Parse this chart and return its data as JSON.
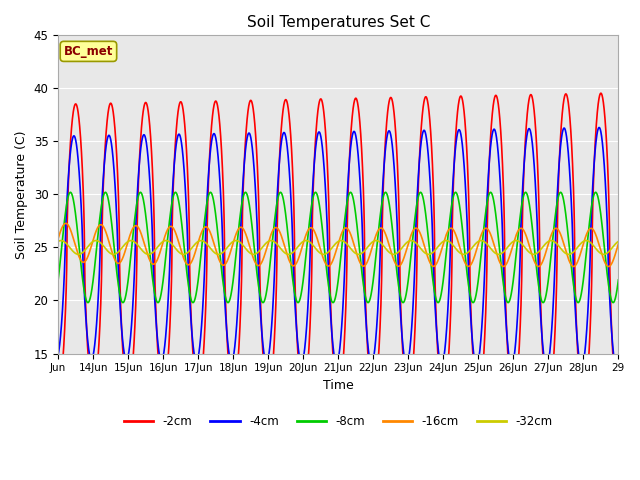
{
  "title": "Soil Temperatures Set C",
  "xlabel": "Time",
  "ylabel": "Soil Temperature (C)",
  "ylim": [
    15,
    45
  ],
  "fig_bg_color": "#ffffff",
  "plot_bg_color": "#e8e8e8",
  "annotation_text": "BC_met",
  "annotation_bg": "#ffff99",
  "annotation_border": "#999900",
  "series_order": [
    "-2cm",
    "-4cm",
    "-8cm",
    "-16cm",
    "-32cm"
  ],
  "series_colors": {
    "-2cm": "#ff0000",
    "-4cm": "#0000ff",
    "-8cm": "#00cc00",
    "-16cm": "#ff8800",
    "-32cm": "#cccc00"
  },
  "x_start": 13.0,
  "x_end": 29.0,
  "x_ticks": [
    13,
    14,
    15,
    16,
    17,
    18,
    19,
    20,
    21,
    22,
    23,
    24,
    25,
    26,
    27,
    28,
    29
  ],
  "x_tick_labels": [
    "Jun",
    "14Jun",
    "15Jun",
    "16Jun",
    "17Jun",
    "18Jun",
    "19Jun",
    "20Jun",
    "21Jun",
    "22Jun",
    "23Jun",
    "24Jun",
    "25Jun",
    "26Jun",
    "27Jun",
    "28Jun",
    "29"
  ],
  "y_ticks": [
    15,
    20,
    25,
    30,
    35,
    40,
    45
  ],
  "figsize": [
    6.4,
    4.8
  ],
  "dpi": 100
}
